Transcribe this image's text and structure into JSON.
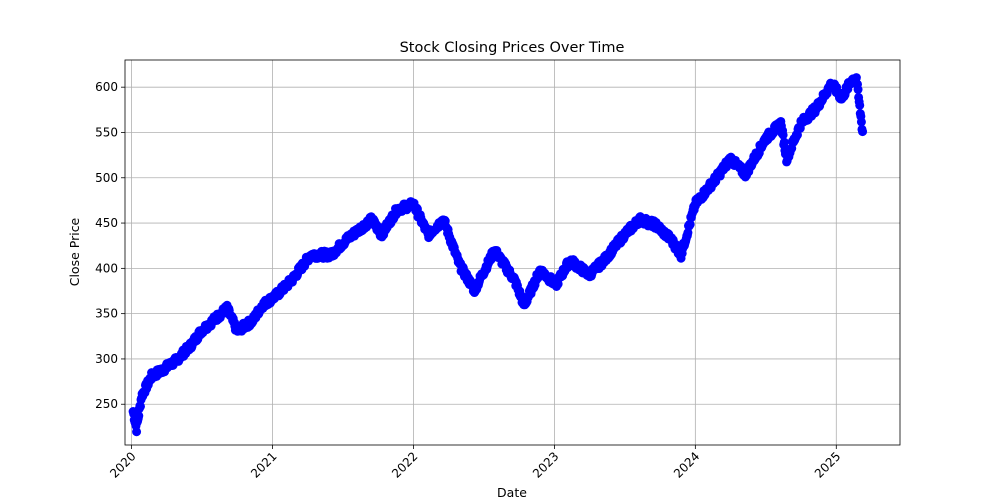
{
  "chart_data": {
    "type": "line",
    "title": "Stock Closing Prices Over Time",
    "xlabel": "Date",
    "ylabel": "Close Price",
    "grid": true,
    "marker": "circle",
    "color": "#0000ff",
    "xlim": [
      "2019-12-15",
      "2025-06-15"
    ],
    "ylim": [
      205,
      630
    ],
    "xticks": [
      "2020",
      "2021",
      "2022",
      "2023",
      "2024",
      "2025"
    ],
    "yticks": [
      250,
      300,
      350,
      400,
      450,
      500,
      550,
      600
    ],
    "points": [
      [
        "2020-01-05",
        242
      ],
      [
        "2020-01-14",
        223
      ],
      [
        "2020-01-27",
        259
      ],
      [
        "2020-02-22",
        281
      ],
      [
        "2020-03-18",
        287
      ],
      [
        "2020-04-25",
        298
      ],
      [
        "2020-06-03",
        315
      ],
      [
        "2020-06-30",
        331
      ],
      [
        "2020-07-30",
        342
      ],
      [
        "2020-09-05",
        356
      ],
      [
        "2020-10-01",
        331
      ],
      [
        "2020-11-10",
        342
      ],
      [
        "2020-12-05",
        359
      ],
      [
        "2021-01-10",
        370
      ],
      [
        "2021-02-20",
        387
      ],
      [
        "2021-04-10",
        415
      ],
      [
        "2021-06-02",
        415
      ],
      [
        "2021-07-12",
        432
      ],
      [
        "2021-09-15",
        454
      ],
      [
        "2021-10-10",
        437
      ],
      [
        "2021-11-20",
        465
      ],
      [
        "2022-01-01",
        471
      ],
      [
        "2022-02-08",
        437
      ],
      [
        "2022-03-20",
        454
      ],
      [
        "2022-04-30",
        404
      ],
      [
        "2022-06-08",
        376
      ],
      [
        "2022-07-30",
        420
      ],
      [
        "2022-09-20",
        387
      ],
      [
        "2022-10-15",
        359
      ],
      [
        "2022-11-25",
        398
      ],
      [
        "2023-01-05",
        382
      ],
      [
        "2023-02-10",
        409
      ],
      [
        "2023-04-01",
        393
      ],
      [
        "2023-05-10",
        409
      ],
      [
        "2023-07-01",
        437
      ],
      [
        "2023-08-10",
        454
      ],
      [
        "2023-09-20",
        448
      ],
      [
        "2023-10-30",
        432
      ],
      [
        "2023-11-25",
        415
      ],
      [
        "2024-01-01",
        471
      ],
      [
        "2024-02-23",
        499
      ],
      [
        "2024-04-01",
        521
      ],
      [
        "2024-05-10",
        504
      ],
      [
        "2024-07-01",
        543
      ],
      [
        "2024-08-10",
        560
      ],
      [
        "2024-08-25",
        521
      ],
      [
        "2024-10-01",
        560
      ],
      [
        "2024-11-10",
        577
      ],
      [
        "2024-12-20",
        604
      ],
      [
        "2025-01-15",
        588
      ],
      [
        "2025-02-10",
        608
      ],
      [
        "2025-02-22",
        610
      ],
      [
        "2025-03-10",
        551
      ]
    ]
  }
}
